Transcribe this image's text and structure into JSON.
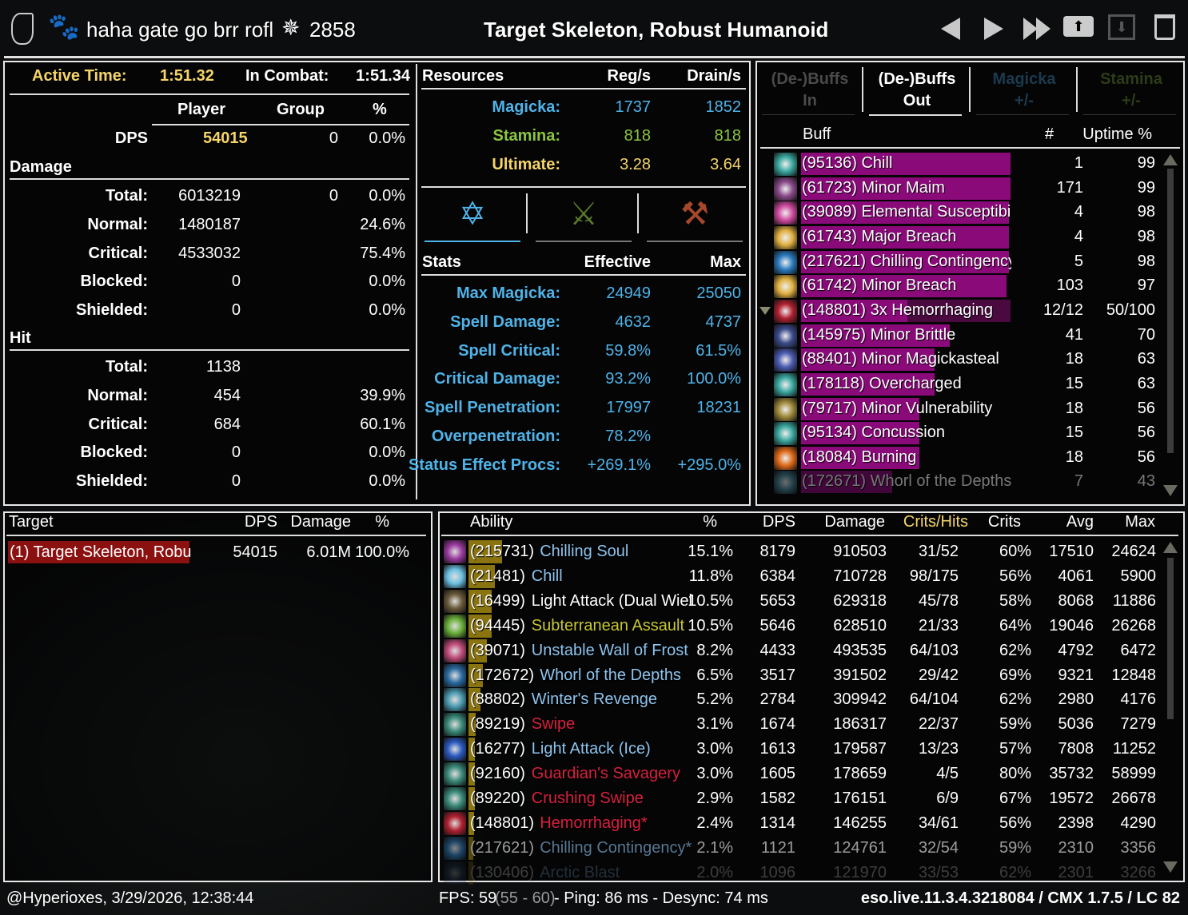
{
  "header": {
    "character_name": "haha gate go brr rofl",
    "champion_points": "2858",
    "target_title": "Target Skeleton, Robust Humanoid",
    "icons": [
      "class-logo-icon",
      "pet-paw-icon",
      "champion-icon",
      "previous-fight-icon",
      "next-fight-icon",
      "last-fight-icon",
      "upload-icon",
      "save-icon",
      "delete-icon"
    ]
  },
  "combat": {
    "active_time_label": "Active Time:",
    "active_time": "1:51.32",
    "in_combat_label": "In Combat:",
    "in_combat": "1:51.34",
    "columns": [
      "Player",
      "Group",
      "%"
    ],
    "dps": {
      "label": "DPS",
      "player": "54015",
      "group": "0",
      "pct": "0.0%"
    },
    "damage_title": "Damage",
    "damage_rows": [
      {
        "label": "Total:",
        "player": "6013219",
        "group": "0",
        "pct": "0.0%"
      },
      {
        "label": "Normal:",
        "player": "1480187",
        "group": "",
        "pct": "24.6%"
      },
      {
        "label": "Critical:",
        "player": "4533032",
        "group": "",
        "pct": "75.4%"
      },
      {
        "label": "Blocked:",
        "player": "0",
        "group": "",
        "pct": "0.0%"
      },
      {
        "label": "Shielded:",
        "player": "0",
        "group": "",
        "pct": "0.0%"
      }
    ],
    "hit_title": "Hit",
    "hit_rows": [
      {
        "label": "Total:",
        "player": "1138",
        "group": "",
        "pct": ""
      },
      {
        "label": "Normal:",
        "player": "454",
        "group": "",
        "pct": "39.9%"
      },
      {
        "label": "Critical:",
        "player": "684",
        "group": "",
        "pct": "60.1%"
      },
      {
        "label": "Blocked:",
        "player": "0",
        "group": "",
        "pct": "0.0%"
      },
      {
        "label": "Shielded:",
        "player": "0",
        "group": "",
        "pct": "0.0%"
      }
    ]
  },
  "resources": {
    "title": "Resources",
    "col1": "Reg/s",
    "col2": "Drain/s",
    "rows": [
      {
        "label": "Magicka:",
        "reg": "1737",
        "drain": "1852",
        "color": "#4fb3e8"
      },
      {
        "label": "Stamina:",
        "reg": "818",
        "drain": "818",
        "color": "#8cc63f"
      },
      {
        "label": "Ultimate:",
        "reg": "3.28",
        "drain": "3.64",
        "color": "#f5d46a"
      }
    ],
    "stat_tabs": [
      {
        "icon": "magic-stats-icon",
        "color": "#4fb3e8",
        "active": true
      },
      {
        "icon": "weapon-stats-icon",
        "color": "#5a7a2a",
        "active": false
      },
      {
        "icon": "armor-stats-icon",
        "color": "#a8482a",
        "active": false
      }
    ]
  },
  "stats": {
    "title": "Stats",
    "col1": "Effective",
    "col2": "Max",
    "rows": [
      {
        "label": "Max Magicka:",
        "effective": "24949",
        "max": "25050"
      },
      {
        "label": "Spell Damage:",
        "effective": "4632",
        "max": "4737"
      },
      {
        "label": "Spell Critical:",
        "effective": "59.8%",
        "max": "61.5%"
      },
      {
        "label": "Critical Damage:",
        "effective": "93.2%",
        "max": "100.0%"
      },
      {
        "label": "Spell Penetration:",
        "effective": "17997",
        "max": "18231"
      },
      {
        "label": "Overpenetration:",
        "effective": "78.2%",
        "max": ""
      },
      {
        "label": "Status Effect Procs:",
        "effective": "+269.1%",
        "max": "+295.0%"
      }
    ]
  },
  "buffs": {
    "tabs": [
      {
        "line1": "(De-)Buffs",
        "line2": "In",
        "color": "#4a4a4a",
        "active": false
      },
      {
        "line1": "(De-)Buffs",
        "line2": "Out",
        "color": "#ffffff",
        "active": true
      },
      {
        "line1": "Magicka",
        "line2": "+/-",
        "color": "#1c3a4e",
        "active": false
      },
      {
        "line1": "Stamina",
        "line2": "+/-",
        "color": "#2c3c18",
        "active": false
      }
    ],
    "columns": {
      "buff": "Buff",
      "count": "#",
      "uptime": "Uptime %"
    },
    "rows": [
      {
        "name": "(95136) Chill",
        "count": "1",
        "uptime": "99",
        "uptime_value": 99,
        "icon": "#3aa8a0"
      },
      {
        "name": "(61723) Minor Maim",
        "count": "171",
        "uptime": "99",
        "uptime_value": 99,
        "icon": "#8a4a8a"
      },
      {
        "name": "(39089) Elemental Susceptibili",
        "count": "4",
        "uptime": "98",
        "uptime_value": 98,
        "icon": "#d04aa0"
      },
      {
        "name": "(61743) Major Breach",
        "count": "4",
        "uptime": "98",
        "uptime_value": 98,
        "icon": "#e0b040"
      },
      {
        "name": "(217621) Chilling Contingency",
        "count": "5",
        "uptime": "98",
        "uptime_value": 98,
        "icon": "#2a7ac0"
      },
      {
        "name": "(61742) Minor Breach",
        "count": "103",
        "uptime": "97",
        "uptime_value": 97,
        "icon": "#e0b040"
      },
      {
        "name": "(148801) 3x Hemorrhaging",
        "count": "12/12",
        "uptime": "50/100",
        "uptime_value": 50,
        "uptime_max": 100,
        "icon": "#b02030",
        "expandable": true
      },
      {
        "name": "(145975) Minor Brittle",
        "count": "41",
        "uptime": "70",
        "uptime_value": 70,
        "icon": "#3a4a8a"
      },
      {
        "name": "(88401) Minor Magickasteal",
        "count": "18",
        "uptime": "63",
        "uptime_value": 63,
        "icon": "#4a5ab0"
      },
      {
        "name": "(178118) Overcharged",
        "count": "15",
        "uptime": "63",
        "uptime_value": 63,
        "icon": "#3aa8a0"
      },
      {
        "name": "(79717) Minor Vulnerability",
        "count": "18",
        "uptime": "56",
        "uptime_value": 56,
        "icon": "#a08a3a"
      },
      {
        "name": "(95134) Concussion",
        "count": "15",
        "uptime": "56",
        "uptime_value": 56,
        "icon": "#3aa8a0"
      },
      {
        "name": "(18084) Burning",
        "count": "18",
        "uptime": "56",
        "uptime_value": 56,
        "icon": "#e06a1a"
      },
      {
        "name": "(172671) Whorl of the Depths",
        "count": "7",
        "uptime": "43",
        "uptime_value": 43,
        "icon": "#4a8aa0"
      }
    ],
    "bar_color": "#8a0a7a"
  },
  "targets": {
    "columns": {
      "target": "Target",
      "dps": "DPS",
      "damage": "Damage",
      "pct": "%"
    },
    "rows": [
      {
        "name": "(1) Target Skeleton, Robu",
        "dps": "54015",
        "damage": "6.01M",
        "pct": "100.0%",
        "selected": true
      }
    ],
    "highlight_color": "#8b1010"
  },
  "abilities": {
    "columns": {
      "ability": "Ability",
      "pct": "%",
      "dps": "DPS",
      "damage": "Damage",
      "crits_hits": "Crits/Hits",
      "crits": "Crits",
      "avg": "Avg",
      "max": "Max"
    },
    "bar_color": "#8a7410",
    "rows": [
      {
        "id": "(215731)",
        "name": "Chilling Soul",
        "pct": "15.1%",
        "pct_value": 15.1,
        "dps": "8179",
        "damage": "910503",
        "crits_hits": "31/52",
        "crits": "60%",
        "avg": "17510",
        "max": "24624",
        "color": "#8ec4ee",
        "icon": "#9a3aa0"
      },
      {
        "id": "(21481)",
        "name": "Chill",
        "pct": "11.8%",
        "pct_value": 11.8,
        "dps": "6384",
        "damage": "710728",
        "crits_hits": "98/175",
        "crits": "56%",
        "avg": "4061",
        "max": "5900",
        "color": "#8ec4ee",
        "icon": "#6ac0e0"
      },
      {
        "id": "(16499)",
        "name": "Light Attack (Dual Wiel",
        "pct": "10.5%",
        "pct_value": 10.5,
        "dps": "5653",
        "damage": "629318",
        "crits_hits": "45/78",
        "crits": "58%",
        "avg": "8068",
        "max": "11886",
        "color": "#ffffff",
        "icon": "#6a5a3a"
      },
      {
        "id": "(94445)",
        "name": "Subterranean Assault",
        "pct": "10.5%",
        "pct_value": 10.5,
        "dps": "5646",
        "damage": "628510",
        "crits_hits": "21/33",
        "crits": "64%",
        "avg": "19046",
        "max": "26268",
        "color": "#c8c832",
        "icon": "#6ab03a"
      },
      {
        "id": "(39071)",
        "name": "Unstable Wall of Frost",
        "pct": "8.2%",
        "pct_value": 8.2,
        "dps": "4433",
        "damage": "493535",
        "crits_hits": "64/103",
        "crits": "62%",
        "avg": "4792",
        "max": "6472",
        "color": "#8ec4ee",
        "icon": "#c04a7a"
      },
      {
        "id": "(172672)",
        "name": "Whorl of the Depths",
        "pct": "6.5%",
        "pct_value": 6.5,
        "dps": "3517",
        "damage": "391502",
        "crits_hits": "29/42",
        "crits": "69%",
        "avg": "9321",
        "max": "12848",
        "color": "#8ec4ee",
        "icon": "#2a6aa0"
      },
      {
        "id": "(88802)",
        "name": "Winter's Revenge",
        "pct": "5.2%",
        "pct_value": 5.2,
        "dps": "2784",
        "damage": "309942",
        "crits_hits": "64/104",
        "crits": "62%",
        "avg": "2980",
        "max": "4176",
        "color": "#8ec4ee",
        "icon": "#4a9ab0"
      },
      {
        "id": "(89219)",
        "name": "Swipe",
        "pct": "3.1%",
        "pct_value": 3.1,
        "dps": "1674",
        "damage": "186317",
        "crits_hits": "22/37",
        "crits": "59%",
        "avg": "5036",
        "max": "7279",
        "color": "#d8203e",
        "icon": "#3a8a7a"
      },
      {
        "id": "(16277)",
        "name": "Light Attack (Ice)",
        "pct": "3.0%",
        "pct_value": 3.0,
        "dps": "1613",
        "damage": "179587",
        "crits_hits": "13/23",
        "crits": "57%",
        "avg": "7808",
        "max": "11252",
        "color": "#8ec4ee",
        "icon": "#2a5ac0"
      },
      {
        "id": "(92160)",
        "name": "Guardian's Savagery",
        "pct": "3.0%",
        "pct_value": 3.0,
        "dps": "1605",
        "damage": "178659",
        "crits_hits": "4/5",
        "crits": "80%",
        "avg": "35732",
        "max": "58999",
        "color": "#d8203e",
        "icon": "#3a8a7a"
      },
      {
        "id": "(89220)",
        "name": "Crushing Swipe",
        "pct": "2.9%",
        "pct_value": 2.9,
        "dps": "1582",
        "damage": "176151",
        "crits_hits": "6/9",
        "crits": "67%",
        "avg": "19572",
        "max": "26678",
        "color": "#d8203e",
        "icon": "#3a8a7a"
      },
      {
        "id": "(148801)",
        "name": "Hemorrhaging*",
        "pct": "2.4%",
        "pct_value": 2.4,
        "dps": "1314",
        "damage": "146255",
        "crits_hits": "34/61",
        "crits": "56%",
        "avg": "2398",
        "max": "4290",
        "color": "#d8203e",
        "icon": "#b02030"
      },
      {
        "id": "(217621)",
        "name": "Chilling Contingency*",
        "pct": "2.1%",
        "pct_value": 2.1,
        "dps": "1121",
        "damage": "124761",
        "crits_hits": "32/54",
        "crits": "59%",
        "avg": "2310",
        "max": "3356",
        "color": "#8ec4ee",
        "icon": "#2a6aa0"
      },
      {
        "id": "(130406)",
        "name": "Arctic Blast",
        "pct": "2.0%",
        "pct_value": 2.0,
        "dps": "1096",
        "damage": "121970",
        "crits_hits": "33/53",
        "crits": "62%",
        "avg": "2301",
        "max": "3266",
        "color": "#8ec4ee",
        "icon": "#2a4a70"
      }
    ]
  },
  "footer": {
    "user_time": "@Hyperioxes, 3/29/2026, 12:38:44",
    "fps": "FPS: 59",
    "fps_range": "(55 - 60)",
    "net": "- Ping: 86 ms - Desync: 74 ms",
    "version": "eso.live.11.3.4.3218084 / CMX 1.7.5 / LC 82"
  }
}
